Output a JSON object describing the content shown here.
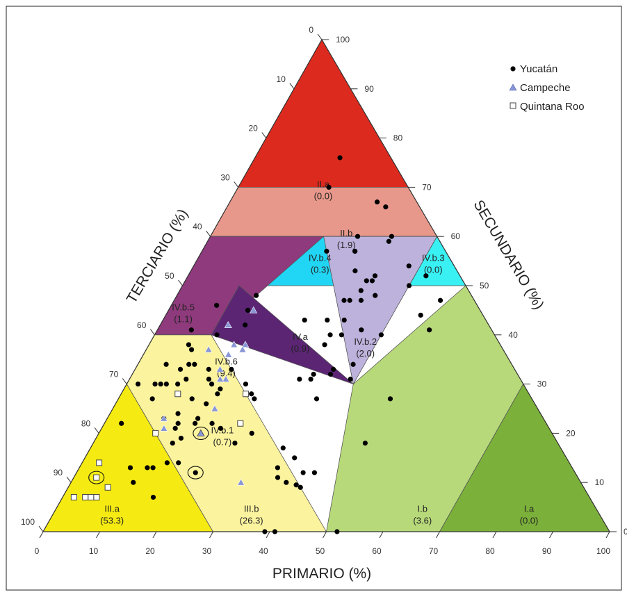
{
  "chart_data": {
    "type": "scatter",
    "subtype": "ternary",
    "axes": {
      "primario": {
        "label": "PRIMARIO (%)",
        "ticks": [
          "0",
          "10",
          "20",
          "30",
          "40",
          "50",
          "60",
          "70",
          "80",
          "90",
          "100"
        ]
      },
      "secundario": {
        "label": "SECUNDARIO (%)",
        "ticks": [
          "0",
          "10",
          "20",
          "30",
          "40",
          "50",
          "60",
          "70",
          "80",
          "90",
          "100"
        ]
      },
      "terciario": {
        "label": "TERCIARIO (%)",
        "ticks": [
          "0",
          "10",
          "20",
          "30",
          "40",
          "50",
          "60",
          "70",
          "80",
          "90",
          "100"
        ]
      }
    },
    "regions": [
      {
        "id": "II.a",
        "value": "(0.0)",
        "color": "#dd2a1e",
        "poly": [
          [
            0,
            0,
            100
          ],
          [
            0,
            30,
            70
          ],
          [
            30,
            0,
            70
          ]
        ],
        "label_at": [
          15,
          15,
          70
        ]
      },
      {
        "id": "II.b",
        "value": "(1.9)",
        "color": "#e8988b",
        "poly": [
          [
            0,
            30,
            70
          ],
          [
            30,
            0,
            70
          ],
          [
            50,
            0,
            50
          ],
          [
            0,
            50,
            50
          ]
        ],
        "label_at": [
          16,
          24,
          60
        ]
      },
      {
        "id": "IV.b.5",
        "value": "(1.1)",
        "color": "#2f67d6",
        "poly": [
          [
            50,
            0,
            50
          ],
          [
            40,
            0,
            60
          ],
          [
            60,
            0,
            40
          ]
        ],
        "label_at": [
          52.4,
          2.6,
          45
        ]
      },
      {
        "id": "IV.b.4",
        "value": "(0.3)",
        "color": "#21d5f4",
        "poly": [
          [
            40,
            0,
            60
          ],
          [
            0,
            40,
            60
          ],
          [
            0,
            50,
            50
          ],
          [
            50,
            0,
            50
          ]
        ],
        "label_at": [
          23.2,
          21.8,
          55
        ]
      },
      {
        "id": "IV.b.3",
        "value": "(0.0)",
        "color": "#39f0f3",
        "poly": [
          [
            0,
            50,
            50
          ],
          [
            0,
            40,
            60
          ],
          [
            10,
            40,
            50
          ]
        ],
        "label_at": [
          3.2,
          41.8,
          55
        ]
      },
      {
        "id": "IV.a",
        "value": "(0.9)",
        "color": "#a4a4a4",
        "poly": [
          [
            40,
            0,
            60
          ],
          [
            0,
            40,
            60
          ],
          [
            20,
            20,
            60
          ]
        ],
        "label_at": [
          34.8,
          26.2,
          39
        ]
      },
      {
        "id": "IV.b.2",
        "value": "(2.0)",
        "color": "#bdb2dc",
        "poly": [
          [
            0,
            40,
            60
          ],
          [
            10,
            40,
            50
          ],
          [
            30,
            40,
            30
          ],
          [
            20,
            20,
            60
          ]
        ],
        "label_at": [
          23.8,
          38.2,
          38
        ]
      },
      {
        "id": "IV.b.6",
        "value": "(9.4)",
        "color": "#8e3a7c",
        "poly": [
          [
            40,
            0,
            60
          ],
          [
            60,
            0,
            40
          ],
          [
            50,
            10,
            40
          ],
          [
            20,
            20,
            60
          ]
        ],
        "label_at": [
          50.4,
          15.6,
          34
        ]
      },
      {
        "id": "IV.b.1",
        "value": "(0.7)",
        "color": "#5b2574",
        "poly": [
          [
            50,
            10,
            40
          ],
          [
            40,
            10,
            50
          ],
          [
            30,
            40,
            30
          ]
        ],
        "label_at": [
          58.2,
          21.8,
          20
        ]
      },
      {
        "id": "III.a",
        "value": "(53.3)",
        "color": "#f5eb12",
        "poly": [
          [
            100,
            0,
            0
          ],
          [
            70,
            30,
            0
          ],
          [
            70,
            0,
            30
          ]
        ],
        "label_at": [
          85.8,
          10.2,
          4
        ]
      },
      {
        "id": "III.b",
        "value": "(26.3)",
        "color": "#fbf39e",
        "poly": [
          [
            70,
            30,
            0
          ],
          [
            70,
            0,
            30
          ],
          [
            60,
            0,
            40
          ],
          [
            50,
            10,
            40
          ],
          [
            50,
            50,
            0
          ]
        ],
        "label_at": [
          61.2,
          34.8,
          4
        ]
      },
      {
        "id": "I.b",
        "value": "(3.6)",
        "color": "#b7d97a",
        "poly": [
          [
            50,
            50,
            0
          ],
          [
            30,
            70,
            0
          ],
          [
            0,
            70,
            30
          ],
          [
            0,
            50,
            50
          ],
          [
            30,
            40,
            30
          ]
        ],
        "label_at": [
          31,
          65,
          4
        ]
      },
      {
        "id": "I.a",
        "value": "(0.0)",
        "color": "#7bb03a",
        "poly": [
          [
            30,
            70,
            0
          ],
          [
            0,
            100,
            0
          ],
          [
            0,
            70,
            30
          ]
        ],
        "label_at": [
          12.2,
          83.8,
          4
        ]
      }
    ],
    "series": [
      {
        "name": "Yucatán",
        "marker": "circle",
        "color": "#000000",
        "points": [
          [
            20,
            40
          ],
          [
            63,
            40.5
          ],
          [
            34,
            48
          ],
          [
            51,
            55
          ],
          [
            65,
            45
          ],
          [
            52,
            38
          ],
          [
            50,
            41
          ],
          [
            50.5,
            40
          ],
          [
            48,
            40
          ],
          [
            46,
            42
          ],
          [
            52,
            35
          ],
          [
            53,
            36
          ],
          [
            48,
            37
          ],
          [
            49,
            34
          ],
          [
            53,
            27
          ],
          [
            57,
            25
          ],
          [
            49,
            24
          ],
          [
            58,
            21
          ],
          [
            49,
            23
          ],
          [
            59,
            19
          ],
          [
            55,
            17
          ],
          [
            50,
            17
          ],
          [
            49,
            21
          ],
          [
            54,
            17
          ],
          [
            55,
            15
          ],
          [
            55,
            14
          ],
          [
            41,
            14
          ],
          [
            43,
            15
          ],
          [
            38,
            14
          ],
          [
            49,
            11
          ],
          [
            46,
            8
          ],
          [
            60,
            13
          ],
          [
            59,
            8
          ],
          [
            59,
            10
          ],
          [
            61,
            9
          ],
          [
            61,
            5
          ],
          [
            63,
            7
          ],
          [
            67,
            6
          ],
          [
            68,
            14
          ],
          [
            67,
            10
          ],
          [
            65,
            13
          ],
          [
            64,
            12
          ],
          [
            71,
            15
          ],
          [
            66,
            15
          ],
          [
            79,
            11
          ],
          [
            78,
            9
          ],
          [
            74,
            13
          ],
          [
            75,
            12
          ],
          [
            70,
            10
          ],
          [
            69,
            17
          ],
          [
            77,
            16
          ],
          [
            64,
            6
          ],
          [
            65,
            5
          ],
          [
            55,
            7
          ],
          [
            53,
            6
          ],
          [
            55,
            8
          ],
          [
            57,
            9
          ],
          [
            68,
            2
          ],
          [
            75,
            3
          ],
          [
            54,
            13
          ],
          [
            56,
            10
          ],
          [
            58,
            16
          ],
          [
            61,
            16
          ],
          [
            62,
            16
          ],
          [
            66,
            13
          ],
          [
            38,
            35
          ],
          [
            39,
            30
          ],
          [
            37,
            32
          ],
          [
            36,
            32
          ],
          [
            32,
            25
          ],
          [
            27,
            33
          ],
          [
            32,
            35
          ],
          [
            28,
            38
          ],
          [
            33,
            35
          ],
          [
            30,
            39
          ],
          [
            28,
            29
          ],
          [
            29,
            31
          ],
          [
            20,
            33
          ],
          [
            25,
            32
          ],
          [
            23,
            30
          ],
          [
            19,
            32
          ],
          [
            22,
            31
          ],
          [
            17,
            35
          ],
          [
            15,
            33
          ],
          [
            17,
            32
          ],
          [
            31,
            31
          ],
          [
            18,
            29
          ],
          [
            16,
            33
          ],
          [
            23,
            36
          ],
          [
            8,
            38
          ],
          [
            8,
            32
          ],
          [
            16,
            27
          ],
          [
            10,
            40
          ],
          [
            21,
            22
          ],
          [
            6,
            47
          ],
          [
            11,
            48
          ],
          [
            25,
            48
          ],
          [
            6,
            42
          ],
          [
            16,
            27
          ],
          [
            11,
            45
          ],
          [
            14,
            26
          ],
          [
            7,
            26
          ],
          [
            6,
            28
          ],
          [
            14,
            16
          ],
          [
            9,
            32
          ],
          [
            9,
            15
          ]
        ]
      },
      {
        "name": "Campeche",
        "marker": "triangle",
        "color": "#8896d6",
        "points": [
          [
            68,
            11
          ],
          [
            57,
            18
          ],
          [
            67,
            10
          ],
          [
            46,
            12
          ],
          [
            40,
            15
          ],
          [
            45,
            17
          ],
          [
            49,
            15
          ],
          [
            52,
            17
          ],
          [
            53,
            16
          ],
          [
            46,
            17
          ],
          [
            60,
            30
          ],
          [
            47,
            15
          ],
          [
            52,
            11
          ],
          [
            52,
            15
          ]
        ]
      },
      {
        "name": "Quintana Roo",
        "marker": "square",
        "color": "#ffffff",
        "points": [
          [
            91,
            2
          ],
          [
            89,
            4
          ],
          [
            88,
            5
          ],
          [
            84,
            7
          ],
          [
            83,
            3
          ],
          [
            87,
            6
          ],
          [
            70,
            10
          ],
          [
            62,
            10
          ],
          [
            54,
            24
          ],
          [
            50,
            22
          ]
        ]
      }
    ],
    "highlighted": [
      {
        "series": "Yucatán",
        "point": [
          67,
          21
        ]
      },
      {
        "series": "Campeche",
        "point": [
          62,
          18
        ]
      },
      {
        "series": "Quintana Roo",
        "point": [
          85,
          4
        ]
      }
    ],
    "legend": {
      "position": "top-right"
    },
    "grid": false
  }
}
